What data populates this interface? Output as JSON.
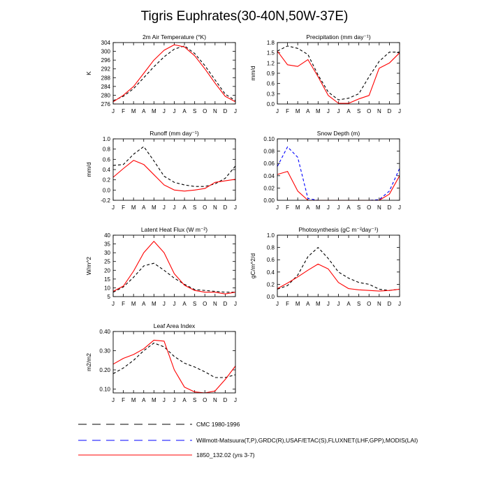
{
  "figure": {
    "title": "Tigris Euphrates(30-40N,50W-37E)"
  },
  "months": [
    "J",
    "F",
    "M",
    "A",
    "M",
    "J",
    "J",
    "A",
    "S",
    "O",
    "N",
    "D",
    "J"
  ],
  "legend": [
    {
      "label": "CMC 1980-1996",
      "color": "#000000",
      "style": "dashed"
    },
    {
      "label": "Willmott-Matsuura(T,P),GRDC(R),USAF/ETAC(S),FLUXNET(LHF,GPP),MODIS(LAI)",
      "color": "#0000ff",
      "style": "dashed"
    },
    {
      "label": "1850_132.02 (yrs 3-7)",
      "color": "#ff0000",
      "style": "solid"
    }
  ],
  "chart_data": [
    {
      "type": "line",
      "title": "2m Air Temperature (°K)",
      "ylabel": "K",
      "ylim": [
        276,
        304
      ],
      "yticks": [
        "276",
        "280",
        "284",
        "288",
        "292",
        "296",
        "300",
        "304"
      ],
      "x": [
        "J",
        "F",
        "M",
        "A",
        "M",
        "J",
        "J",
        "A",
        "S",
        "O",
        "N",
        "D",
        "J"
      ],
      "series": [
        {
          "name": "CMC 1980-1996",
          "values": [
            277.5,
            279.5,
            283,
            288,
            293,
            297.5,
            301,
            302.5,
            299,
            293.5,
            287,
            280.5,
            277.5
          ]
        },
        {
          "name": "1850_132.02 (yrs 3-7)",
          "values": [
            277,
            280,
            284,
            290,
            296,
            300.5,
            303,
            302,
            298,
            292,
            285.5,
            279.5,
            277
          ]
        }
      ]
    },
    {
      "type": "line",
      "title": "Precipitation (mm day⁻¹)",
      "ylabel": "mm/d",
      "ylim": [
        0,
        1.8
      ],
      "yticks": [
        "0.0",
        "0.3",
        "0.6",
        "0.9",
        "1.2",
        "1.5",
        "1.8"
      ],
      "x": [
        "J",
        "F",
        "M",
        "A",
        "M",
        "J",
        "J",
        "A",
        "S",
        "O",
        "N",
        "D",
        "J"
      ],
      "series": [
        {
          "name": "CMC 1980-1996",
          "values": [
            1.55,
            1.7,
            1.63,
            1.45,
            0.85,
            0.35,
            0.12,
            0.17,
            0.3,
            0.8,
            1.25,
            1.52,
            1.52
          ]
        },
        {
          "name": "1850_132.02 (yrs 3-7)",
          "values": [
            1.55,
            1.15,
            1.1,
            1.3,
            0.8,
            0.25,
            0.02,
            0.02,
            0.15,
            0.25,
            1.05,
            1.2,
            1.5
          ]
        }
      ]
    },
    {
      "type": "line",
      "title": "Runoff (mm day⁻¹)",
      "ylabel": "mm/d",
      "ylim": [
        -0.2,
        1.0
      ],
      "yticks": [
        "-0.2",
        "0.0",
        "0.2",
        "0.4",
        "0.6",
        "0.8",
        "1.0"
      ],
      "x": [
        "J",
        "F",
        "M",
        "A",
        "M",
        "J",
        "J",
        "A",
        "S",
        "O",
        "N",
        "D",
        "J"
      ],
      "series": [
        {
          "name": "CMC 1980-1996",
          "values": [
            0.48,
            0.5,
            0.7,
            0.85,
            0.57,
            0.27,
            0.15,
            0.1,
            0.07,
            0.07,
            0.12,
            0.23,
            0.47
          ]
        },
        {
          "name": "1850_132.02 (yrs 3-7)",
          "values": [
            0.25,
            0.42,
            0.58,
            0.5,
            0.3,
            0.1,
            0.0,
            -0.02,
            0.0,
            0.03,
            0.15,
            0.18,
            0.21
          ]
        }
      ]
    },
    {
      "type": "line",
      "title": "Snow Depth (m)",
      "ylabel": "",
      "ylim": [
        0,
        0.1
      ],
      "yticks": [
        "0.00",
        "0.02",
        "0.04",
        "0.06",
        "0.08",
        "0.10"
      ],
      "x": [
        "J",
        "F",
        "M",
        "A",
        "M",
        "J",
        "J",
        "A",
        "S",
        "O",
        "N",
        "D",
        "J"
      ],
      "series": [
        {
          "name": "Willmott-Matsuura(T,P),GRDC(R),USAF/ETAC(S),FLUXNET(LHF,GPP),MODIS(LAI)",
          "values": [
            0.055,
            0.087,
            0.07,
            0.003,
            0.0,
            0.0,
            0.0,
            0.0,
            0.0,
            0.0,
            0.001,
            0.015,
            0.052
          ]
        },
        {
          "name": "1850_132.02 (yrs 3-7)",
          "values": [
            0.042,
            0.047,
            0.015,
            0.0,
            0.0,
            0.0,
            0.0,
            0.0,
            0.0,
            0.0,
            0.0,
            0.01,
            0.04
          ]
        }
      ]
    },
    {
      "type": "line",
      "title": "Latent Heat Flux (W m⁻²)",
      "ylabel": "W/m^2",
      "ylim": [
        5,
        40
      ],
      "yticks": [
        "5",
        "10",
        "15",
        "20",
        "25",
        "30",
        "35",
        "40"
      ],
      "x": [
        "J",
        "F",
        "M",
        "A",
        "M",
        "J",
        "J",
        "A",
        "S",
        "O",
        "N",
        "D",
        "J"
      ],
      "series": [
        {
          "name": "FLUXNET(LHF)",
          "values": [
            7.5,
            10.5,
            16,
            22.5,
            24,
            20,
            15.5,
            12,
            9,
            8.5,
            8,
            7.5,
            7.5
          ]
        },
        {
          "name": "1850_132.02 (yrs 3-7)",
          "values": [
            8,
            11,
            19.5,
            30,
            36.5,
            30,
            18,
            11.5,
            8.5,
            7.5,
            7.5,
            6.5,
            7.5
          ]
        }
      ]
    },
    {
      "type": "line",
      "title": "Photosynthesis (gC m⁻²day⁻¹)",
      "ylabel": "gC/m^2/d",
      "ylim": [
        0,
        1.0
      ],
      "yticks": [
        "0.0",
        "0.2",
        "0.4",
        "0.6",
        "0.8",
        "1.0"
      ],
      "x": [
        "J",
        "F",
        "M",
        "A",
        "M",
        "J",
        "J",
        "A",
        "S",
        "O",
        "N",
        "D",
        "J"
      ],
      "series": [
        {
          "name": "FLUXNET(GPP)",
          "values": [
            0.12,
            0.18,
            0.35,
            0.65,
            0.8,
            0.62,
            0.4,
            0.3,
            0.23,
            0.2,
            0.12,
            0.1,
            0.12
          ]
        },
        {
          "name": "1850_132.02 (yrs 3-7)",
          "values": [
            0.13,
            0.22,
            0.32,
            0.43,
            0.53,
            0.45,
            0.23,
            0.13,
            0.11,
            0.1,
            0.09,
            0.1,
            0.12
          ]
        }
      ]
    },
    {
      "type": "line",
      "title": "Leaf Area Index",
      "ylabel": "m2/m2",
      "ylim": [
        0.08,
        0.4
      ],
      "yticks": [
        "0.10",
        "0.20",
        "0.30",
        "0.40"
      ],
      "x": [
        "J",
        "F",
        "M",
        "A",
        "M",
        "J",
        "J",
        "A",
        "S",
        "O",
        "N",
        "D",
        "J"
      ],
      "series": [
        {
          "name": "MODIS(LAI)",
          "values": [
            0.18,
            0.21,
            0.25,
            0.3,
            0.34,
            0.32,
            0.27,
            0.235,
            0.215,
            0.19,
            0.16,
            0.16,
            0.175
          ]
        },
        {
          "name": "1850_132.02 (yrs 3-7)",
          "values": [
            0.23,
            0.26,
            0.28,
            0.31,
            0.355,
            0.35,
            0.2,
            0.11,
            0.085,
            0.08,
            0.09,
            0.15,
            0.22
          ]
        }
      ]
    }
  ]
}
